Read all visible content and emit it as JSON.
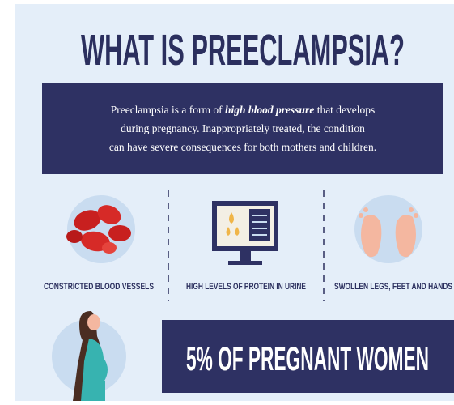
{
  "title": "WHAT IS PREECLAMPSIA?",
  "intro": [
    [
      "Preeclampsia is a form of ",
      "high blood pressure",
      " that develops"
    ],
    [
      "during pregnancy. Inappropriately treated, the condition"
    ],
    [
      "can have severe consequences for both mothers and children."
    ]
  ],
  "symptoms": [
    "CONSTRICTED BLOOD VESSELS",
    "HIGH LEVELS OF PROTEIN IN URINE",
    "SWOLLEN LEGS, FEET AND HANDS"
  ],
  "banner": "5% OF PREGNANT WOMEN"
}
